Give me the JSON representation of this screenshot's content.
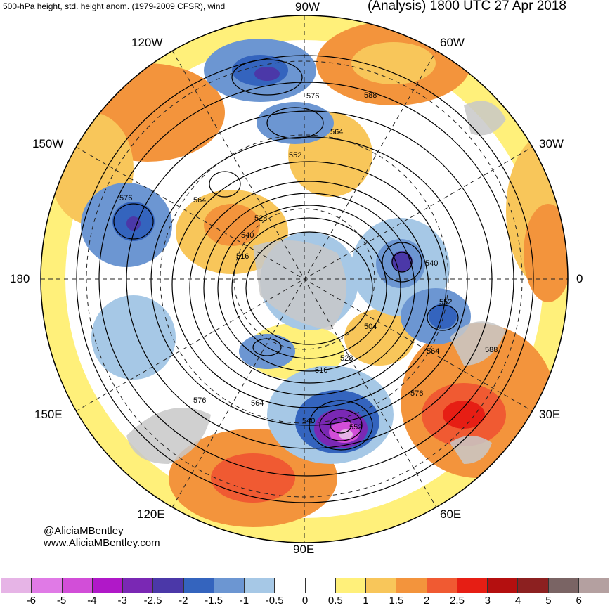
{
  "header": {
    "left_title": "500-hPa height, std. height anom. (1979-2009 CFSR), wind",
    "right_title": "(Analysis) 1800 UTC 27 Apr 2018"
  },
  "map": {
    "projection": "north-polar-stereographic",
    "longitude_labels": [
      "90W",
      "60W",
      "30W",
      "0",
      "30E",
      "60E",
      "90E",
      "120E",
      "150E",
      "180",
      "150W",
      "120W"
    ],
    "contour_labels": [
      "576",
      "588",
      "564",
      "552",
      "576",
      "564",
      "528",
      "540",
      "516",
      "540",
      "552",
      "504",
      "564",
      "588",
      "528",
      "516",
      "576",
      "564",
      "576",
      "540",
      "552"
    ],
    "colors": {
      "land_gray": "#c8c8c8",
      "contour": "#000000",
      "graticule": "#222222"
    }
  },
  "credit": {
    "handle": "@AliciaMBentley",
    "website": "www.AliciaMBentley.com"
  },
  "colorbar": {
    "colors": [
      "#e6b4e6",
      "#e07ae6",
      "#d24ed8",
      "#b018c8",
      "#7a28b4",
      "#4b38a8",
      "#3464be",
      "#6c96d2",
      "#a6c8e6",
      "#ffffff",
      "#ffffff",
      "#fff07a",
      "#f8c65a",
      "#f3943c",
      "#f05a32",
      "#e61e14",
      "#b40f0f",
      "#8c2020",
      "#7a6464",
      "#b4a0a0"
    ],
    "tick_labels": [
      "-6",
      "-5",
      "-4",
      "-3",
      "-2.5",
      "-2",
      "-1.5",
      "-1",
      "-0.5",
      "0",
      "0.5",
      "1",
      "1.5",
      "2",
      "2.5",
      "3",
      "4",
      "5",
      "6"
    ]
  }
}
